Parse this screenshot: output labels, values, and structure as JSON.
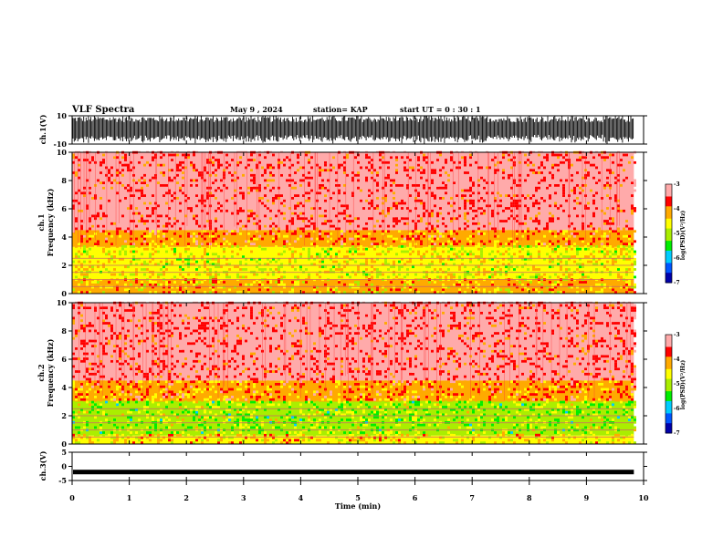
{
  "header": {
    "title": "VLF Spectra",
    "date": "May 9  , 2024",
    "station": "station= KAP",
    "start_ut": "start  UT  =   0  : 30 : 1"
  },
  "colors": {
    "spectrogram_scale": [
      "#0000aa",
      "#0055ff",
      "#00ccff",
      "#00ee00",
      "#aaee00",
      "#ffff00",
      "#ffaa00",
      "#ff0000",
      "#ffaaaa",
      "#ffffff"
    ],
    "trace": "#000000"
  },
  "chart_data": [
    {
      "type": "line",
      "name": "ch1-waveform",
      "ylabel": "ch.1(V)",
      "ylim": [
        -10,
        10
      ],
      "yticks": [
        "10",
        "-10"
      ],
      "xlim": [
        0,
        10
      ],
      "description_values": {
        "x_end_min": 9.83,
        "amplitude_approx": [
          -10,
          10
        ]
      }
    },
    {
      "type": "heatmap",
      "name": "ch1-spectrogram",
      "ylabel": "ch.1",
      "ylabel2": "Frequency  (kHz)",
      "ylim": [
        0,
        10
      ],
      "yticks": [
        "0",
        "2",
        "4",
        "6",
        "8",
        "10"
      ],
      "xlim": [
        0,
        10
      ],
      "x_end_min": 9.83,
      "colorbar": {
        "label": "log(PSD)(V²/Hz)",
        "range": [
          -7,
          -3
        ],
        "ticks": [
          "-3",
          "-4",
          "-5",
          "-6",
          "-7"
        ]
      },
      "bands": [
        {
          "from_khz": 0,
          "to_khz": 1.0,
          "level": -4.3
        },
        {
          "from_khz": 1.0,
          "to_khz": 3.3,
          "level": -4.6
        },
        {
          "from_khz": 3.3,
          "to_khz": 4.5,
          "level": -4.0
        },
        {
          "from_khz": 4.5,
          "to_khz": 10.0,
          "level": -3.4
        }
      ]
    },
    {
      "type": "heatmap",
      "name": "ch2-spectrogram",
      "ylabel": "ch.2",
      "ylabel2": "Frequency  (kHz)",
      "ylim": [
        0,
        10
      ],
      "yticks": [
        "0",
        "2",
        "4",
        "6",
        "8",
        "10"
      ],
      "xlim": [
        0,
        10
      ],
      "x_end_min": 9.83,
      "colorbar": {
        "label": "log(PSD)(V²/Hz)",
        "range": [
          -7,
          -3
        ],
        "ticks": [
          "-3",
          "-4",
          "-5",
          "-6",
          "-7"
        ]
      },
      "bands": [
        {
          "from_khz": 0,
          "to_khz": 0.6,
          "level": -4.4
        },
        {
          "from_khz": 0.6,
          "to_khz": 3.0,
          "level": -5.0
        },
        {
          "from_khz": 3.0,
          "to_khz": 4.5,
          "level": -4.0
        },
        {
          "from_khz": 4.5,
          "to_khz": 10.0,
          "level": -3.4
        }
      ]
    },
    {
      "type": "line",
      "name": "ch3-waveform",
      "ylabel": "ch.3(V)",
      "ylim": [
        -5,
        5
      ],
      "yticks": [
        "5",
        "0",
        "-5"
      ],
      "xlim": [
        0,
        10
      ],
      "x_end_min": 9.83,
      "level_v": -2
    }
  ],
  "xaxis": {
    "label": "Time  (min)",
    "ticks": [
      "0",
      "1",
      "2",
      "3",
      "4",
      "5",
      "6",
      "7",
      "8",
      "9",
      "10"
    ]
  }
}
